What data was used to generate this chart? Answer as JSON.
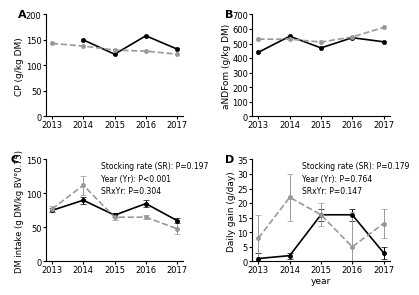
{
  "years": [
    2013,
    2014,
    2015,
    2016,
    2017
  ],
  "A": {
    "label": "A",
    "ylabel": "CP (g/kg DM)",
    "ylim": [
      0,
      200
    ],
    "yticks": [
      0,
      50,
      100,
      150,
      200
    ],
    "solid_years": [
      2014,
      2015,
      2016,
      2017
    ],
    "solid": [
      150,
      122,
      158,
      132
    ],
    "dashed_years": [
      2013,
      2014,
      2015,
      2016,
      2017
    ],
    "dashed": [
      143,
      138,
      130,
      128,
      122
    ]
  },
  "B": {
    "label": "B",
    "ylabel": "aNDFom (g/kg DM)",
    "ylim": [
      0,
      700
    ],
    "yticks": [
      0,
      100,
      200,
      300,
      400,
      500,
      600,
      700
    ],
    "solid_years": [
      2013,
      2014,
      2015,
      2016,
      2017
    ],
    "solid": [
      440,
      550,
      470,
      540,
      512
    ],
    "dashed_years": [
      2013,
      2014,
      2015,
      2016,
      2017
    ],
    "dashed": [
      530,
      530,
      510,
      545,
      610
    ]
  },
  "C": {
    "label": "C",
    "ylabel": "DM intake (g DM/kg BV°0.75)",
    "ylim": [
      0,
      150
    ],
    "yticks": [
      0,
      50,
      100,
      150
    ],
    "solid": [
      75,
      90,
      68,
      85,
      60
    ],
    "solid_err": [
      3,
      5,
      3,
      5,
      4
    ],
    "dashed": [
      77,
      112,
      65,
      65,
      48
    ],
    "dashed_err": [
      4,
      14,
      4,
      3,
      8
    ],
    "annotation": "Stocking rate (SR): P=0.197\nYear (Yr): P<0.001\nSRxYr: P=0.304"
  },
  "D": {
    "label": "D",
    "ylabel": "Daily gain (g/day)",
    "ylim": [
      0,
      35
    ],
    "yticks": [
      0,
      5,
      10,
      15,
      20,
      25,
      30,
      35
    ],
    "solid": [
      1,
      2,
      16,
      16,
      3
    ],
    "solid_err": [
      2,
      1,
      2,
      2,
      2
    ],
    "dashed": [
      8,
      22,
      16,
      5,
      13
    ],
    "dashed_err": [
      8,
      8,
      4,
      12,
      5
    ],
    "annotation": "Stocking rate (SR): P=0.179\nYear (Yr): P=0.764\nSRxYr: P=0.147",
    "xlabel": "year"
  },
  "solid_color": "#000000",
  "dashed_color": "#999999",
  "line_width": 1.2,
  "marker_size": 3,
  "font_size": 6,
  "label_font_size": 6.5,
  "annot_font_size": 5.5,
  "panel_label_size": 8
}
